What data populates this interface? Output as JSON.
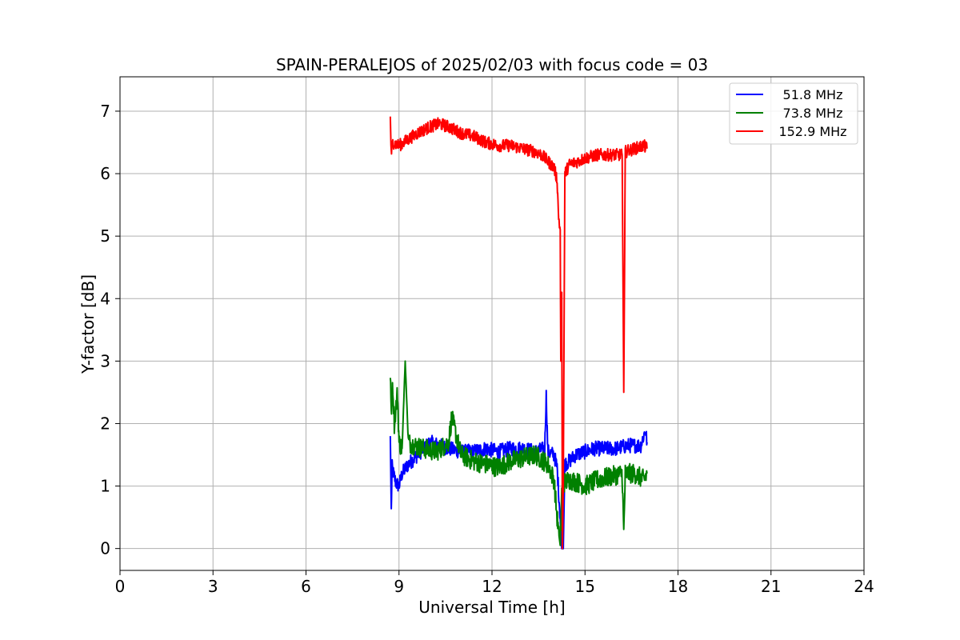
{
  "chart_data": {
    "type": "line",
    "title": "SPAIN-PERALEJOS of 2025/02/03 with focus code = 03",
    "xlabel": "Universal Time [h]",
    "ylabel": "Y-factor [dB]",
    "xlim": [
      0,
      24
    ],
    "ylim": [
      -0.35,
      7.55
    ],
    "xticks": [
      0,
      3,
      6,
      9,
      12,
      15,
      18,
      21,
      24
    ],
    "yticks": [
      0,
      1,
      2,
      3,
      4,
      5,
      6,
      7
    ],
    "grid": true,
    "legend_position": "top-right",
    "series": [
      {
        "name": "51.8 MHz",
        "color": "#0000ff",
        "noise": 0.12,
        "x": [
          8.72,
          8.75,
          8.78,
          8.82,
          8.9,
          9.0,
          9.1,
          9.3,
          9.5,
          9.8,
          10.0,
          10.3,
          10.6,
          11.0,
          11.4,
          11.8,
          12.2,
          12.6,
          13.0,
          13.4,
          13.7,
          13.75,
          13.8,
          14.0,
          14.1,
          14.2,
          14.25,
          14.3,
          14.35,
          14.5,
          14.7,
          15.0,
          15.3,
          15.6,
          16.0,
          16.4,
          16.8,
          16.95,
          17.0
        ],
        "y": [
          1.8,
          0.6,
          1.3,
          1.2,
          1.05,
          1.0,
          1.2,
          1.35,
          1.45,
          1.6,
          1.7,
          1.65,
          1.6,
          1.55,
          1.55,
          1.6,
          1.55,
          1.6,
          1.6,
          1.55,
          1.6,
          2.45,
          1.55,
          1.5,
          1.3,
          0.5,
          0.0,
          0.0,
          1.35,
          1.4,
          1.5,
          1.55,
          1.6,
          1.6,
          1.6,
          1.65,
          1.65,
          1.9,
          1.7
        ]
      },
      {
        "name": "73.8 MHz",
        "color": "#008000",
        "noise": 0.16,
        "x": [
          8.72,
          8.75,
          8.8,
          8.85,
          8.95,
          9.0,
          9.1,
          9.2,
          9.3,
          9.5,
          9.8,
          10.2,
          10.6,
          10.7,
          11.0,
          11.4,
          11.8,
          12.2,
          12.6,
          13.0,
          13.4,
          13.8,
          14.0,
          14.1,
          14.15,
          14.2,
          14.25,
          14.3,
          14.5,
          14.8,
          15.0,
          15.4,
          15.8,
          16.2,
          16.25,
          16.3,
          16.6,
          16.9,
          17.0
        ],
        "y": [
          2.7,
          2.2,
          2.6,
          2.0,
          2.5,
          1.7,
          1.6,
          3.0,
          1.7,
          1.65,
          1.6,
          1.55,
          1.7,
          2.1,
          1.5,
          1.4,
          1.35,
          1.3,
          1.4,
          1.45,
          1.5,
          1.35,
          1.1,
          0.5,
          0.25,
          0.05,
          0.9,
          1.05,
          1.1,
          1.05,
          1.0,
          1.1,
          1.15,
          1.2,
          0.25,
          1.2,
          1.2,
          1.1,
          1.2
        ]
      },
      {
        "name": "152.9 MHz",
        "color": "#ff0000",
        "noise": 0.1,
        "x": [
          8.72,
          8.75,
          8.8,
          9.0,
          9.3,
          9.6,
          10.0,
          10.3,
          10.6,
          11.0,
          11.4,
          11.8,
          12.2,
          12.6,
          13.0,
          13.4,
          13.6,
          13.8,
          14.0,
          14.1,
          14.15,
          14.2,
          14.22,
          14.25,
          14.27,
          14.3,
          14.35,
          14.5,
          14.8,
          15.0,
          15.4,
          15.8,
          16.2,
          16.25,
          16.3,
          16.6,
          16.9,
          17.0
        ],
        "y": [
          6.9,
          6.3,
          6.5,
          6.45,
          6.55,
          6.65,
          6.75,
          6.8,
          6.75,
          6.65,
          6.6,
          6.5,
          6.45,
          6.45,
          6.4,
          6.35,
          6.3,
          6.2,
          6.1,
          5.9,
          5.3,
          5.1,
          3.0,
          4.1,
          0.0,
          1.0,
          6.0,
          6.15,
          6.2,
          6.25,
          6.3,
          6.3,
          6.3,
          2.5,
          6.35,
          6.4,
          6.45,
          6.4
        ]
      }
    ]
  }
}
